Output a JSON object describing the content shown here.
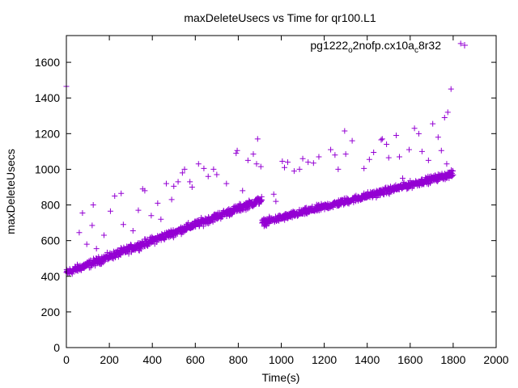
{
  "chart_data": {
    "type": "scatter",
    "title": "maxDeleteUsecs vs Time for qr100.L1",
    "xlabel": "Time(s)",
    "ylabel": "maxDeleteUsecs",
    "xlim": [
      0,
      2000
    ],
    "ylim": [
      0,
      1750
    ],
    "xticks": [
      0,
      200,
      400,
      600,
      800,
      1000,
      1200,
      1400,
      1600,
      1800,
      2000
    ],
    "yticks": [
      0,
      200,
      400,
      600,
      800,
      1000,
      1200,
      1400,
      1600
    ],
    "grid": false,
    "legend": "top-right",
    "series": [
      {
        "name": "pg1222_o2nofp.cx10a_c8r32",
        "name_parts": {
          "a": "pg1222",
          "b": "o",
          "c": "2nofp.cx10a",
          "d": "c",
          "e": "8r32"
        },
        "color": "#9400d3",
        "marker": "+",
        "trend": [
          {
            "x_start": 0,
            "x_end": 910,
            "y_start": 420,
            "y_end": 830,
            "count": 700,
            "spread": 18
          },
          {
            "x_start": 910,
            "x_end": 1800,
            "y_start": 700,
            "y_end": 975,
            "count": 700,
            "spread": 16
          }
        ],
        "outliers": [
          [
            0,
            1465
          ],
          [
            60,
            645
          ],
          [
            75,
            755
          ],
          [
            95,
            580
          ],
          [
            120,
            685
          ],
          [
            125,
            800
          ],
          [
            140,
            555
          ],
          [
            175,
            630
          ],
          [
            205,
            765
          ],
          [
            225,
            850
          ],
          [
            255,
            865
          ],
          [
            265,
            690
          ],
          [
            310,
            655
          ],
          [
            335,
            770
          ],
          [
            355,
            890
          ],
          [
            365,
            880
          ],
          [
            395,
            740
          ],
          [
            425,
            810
          ],
          [
            440,
            720
          ],
          [
            465,
            920
          ],
          [
            490,
            830
          ],
          [
            500,
            905
          ],
          [
            520,
            930
          ],
          [
            540,
            980
          ],
          [
            550,
            1000
          ],
          [
            575,
            930
          ],
          [
            585,
            900
          ],
          [
            615,
            1030
          ],
          [
            640,
            1005
          ],
          [
            660,
            960
          ],
          [
            685,
            1000
          ],
          [
            700,
            970
          ],
          [
            745,
            920
          ],
          [
            790,
            1090
          ],
          [
            795,
            1105
          ],
          [
            820,
            880
          ],
          [
            845,
            1050
          ],
          [
            870,
            1085
          ],
          [
            885,
            1030
          ],
          [
            890,
            1170
          ],
          [
            905,
            1015
          ],
          [
            965,
            860
          ],
          [
            975,
            820
          ],
          [
            1005,
            1045
          ],
          [
            1015,
            1010
          ],
          [
            1030,
            1040
          ],
          [
            1060,
            990
          ],
          [
            1085,
            1000
          ],
          [
            1100,
            1060
          ],
          [
            1125,
            1040
          ],
          [
            1150,
            1035
          ],
          [
            1175,
            1070
          ],
          [
            1230,
            1110
          ],
          [
            1250,
            1080
          ],
          [
            1265,
            1000
          ],
          [
            1295,
            1215
          ],
          [
            1300,
            1085
          ],
          [
            1330,
            1160
          ],
          [
            1385,
            1005
          ],
          [
            1410,
            1055
          ],
          [
            1430,
            1095
          ],
          [
            1465,
            1165
          ],
          [
            1470,
            1170
          ],
          [
            1490,
            1140
          ],
          [
            1500,
            1065
          ],
          [
            1535,
            1190
          ],
          [
            1550,
            1070
          ],
          [
            1565,
            950
          ],
          [
            1595,
            1110
          ],
          [
            1620,
            1230
          ],
          [
            1640,
            1200
          ],
          [
            1655,
            1100
          ],
          [
            1685,
            1050
          ],
          [
            1705,
            1255
          ],
          [
            1730,
            1180
          ],
          [
            1745,
            1105
          ],
          [
            1760,
            1290
          ],
          [
            1770,
            1030
          ],
          [
            1775,
            1320
          ],
          [
            1790,
            1450
          ],
          [
            1835,
            1705
          ]
        ]
      }
    ]
  }
}
